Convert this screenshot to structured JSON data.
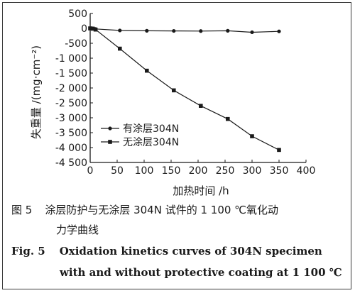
{
  "chart_data": {
    "type": "line",
    "xlabel": "加热时间 /h",
    "ylabel": "失重量 /(mg·cm⁻²)",
    "xlim": [
      0,
      400
    ],
    "ylim": [
      -4500,
      500
    ],
    "x_ticks": [
      0,
      50,
      100,
      150,
      200,
      250,
      300,
      350,
      400
    ],
    "x_tick_labels": [
      "0",
      "50",
      "100",
      "150",
      "200",
      "250",
      "300",
      "350",
      "400"
    ],
    "y_ticks": [
      500,
      0,
      -500,
      -1000,
      -1500,
      -2000,
      -2500,
      -3000,
      -3500,
      -4000,
      -4500
    ],
    "y_tick_labels": [
      "500",
      "0",
      "-500",
      "-1 000",
      "-1 500",
      "-2 000",
      "-2 500",
      "-3 000",
      "-3 500",
      "-4 000",
      "-4 500"
    ],
    "grid": false,
    "legend_position": "lower-left",
    "series": [
      {
        "name": "有涂层304N",
        "marker": "circle",
        "x": [
          0,
          5,
          10,
          55,
          105,
          155,
          205,
          255,
          300,
          350
        ],
        "y": [
          0,
          0,
          -20,
          -70,
          -80,
          -85,
          -90,
          -80,
          -130,
          -100
        ]
      },
      {
        "name": "无涂层304N",
        "marker": "square",
        "x": [
          0,
          5,
          10,
          55,
          105,
          155,
          205,
          255,
          300,
          350
        ],
        "y": [
          0,
          -10,
          -40,
          -680,
          -1420,
          -2080,
          -2600,
          -3040,
          -3620,
          -4080
        ]
      }
    ]
  },
  "caption": {
    "cn_fig": "图 5",
    "cn_line1": "涂层防护与无涂层 304N 试件的 1 100 ℃氧化动",
    "cn_line2": "力学曲线",
    "en_fig": "Fig. 5",
    "en_line1": "Oxidation kinetics curves of 304N specimen",
    "en_line2": "with and without protective coating at 1 100 ℃"
  },
  "colors": {
    "line": "#1a1a1a",
    "axis": "#1a1a1a",
    "border": "#3a3a3a"
  }
}
